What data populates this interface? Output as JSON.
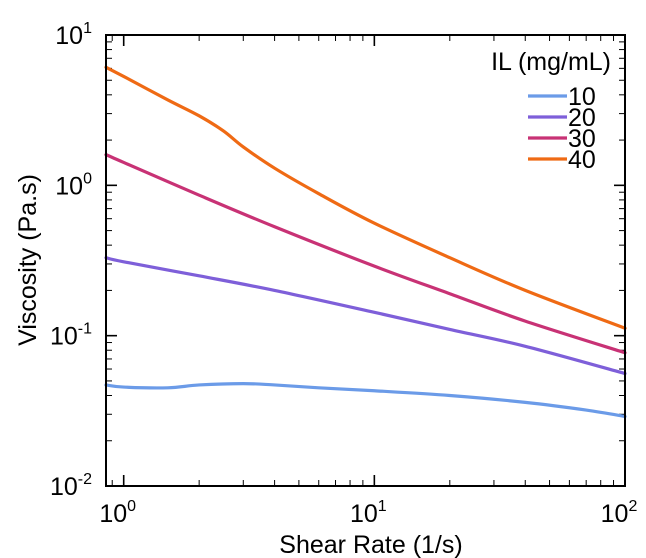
{
  "chart_data": {
    "type": "line",
    "xlabel": "Shear Rate (1/s)",
    "ylabel": "Viscosity (Pa.s)",
    "x_scale": "log",
    "y_scale": "log",
    "xlim": [
      0.85,
      100
    ],
    "ylim": [
      0.01,
      10
    ],
    "x_ticks": [
      {
        "value": 1,
        "base": "10",
        "exp": "0"
      },
      {
        "value": 10,
        "base": "10",
        "exp": "1"
      },
      {
        "value": 100,
        "base": "10",
        "exp": "2"
      }
    ],
    "y_ticks": [
      {
        "value": 0.01,
        "base": "10",
        "exp": "-2"
      },
      {
        "value": 0.1,
        "base": "10",
        "exp": "-1"
      },
      {
        "value": 1,
        "base": "10",
        "exp": "0"
      },
      {
        "value": 10,
        "base": "10",
        "exp": "1"
      }
    ],
    "legend_title": "IL (mg/mL)",
    "legend_position": "top-right",
    "grid": false,
    "series": [
      {
        "name": "10",
        "color": "#6B9BE8",
        "x": [
          0.85,
          1,
          1.5,
          2,
          3,
          4,
          6,
          10,
          20,
          40,
          70,
          100
        ],
        "y": [
          0.047,
          0.0455,
          0.045,
          0.047,
          0.048,
          0.047,
          0.045,
          0.043,
          0.04,
          0.036,
          0.032,
          0.029
        ]
      },
      {
        "name": "20",
        "color": "#7E5FD9",
        "x": [
          0.85,
          1,
          2,
          4,
          10,
          20,
          40,
          100
        ],
        "y": [
          0.33,
          0.31,
          0.25,
          0.2,
          0.143,
          0.11,
          0.085,
          0.056
        ]
      },
      {
        "name": "30",
        "color": "#C83275",
        "x": [
          0.85,
          1,
          2,
          4,
          10,
          20,
          40,
          100
        ],
        "y": [
          1.6,
          1.42,
          0.86,
          0.53,
          0.29,
          0.19,
          0.125,
          0.077
        ]
      },
      {
        "name": "40",
        "color": "#EF6A14",
        "x": [
          0.85,
          1,
          1.5,
          2,
          2.5,
          3,
          4,
          6,
          10,
          20,
          40,
          100
        ],
        "y": [
          6.1,
          5.3,
          3.7,
          2.9,
          2.3,
          1.8,
          1.3,
          0.88,
          0.56,
          0.33,
          0.2,
          0.112
        ]
      }
    ]
  }
}
